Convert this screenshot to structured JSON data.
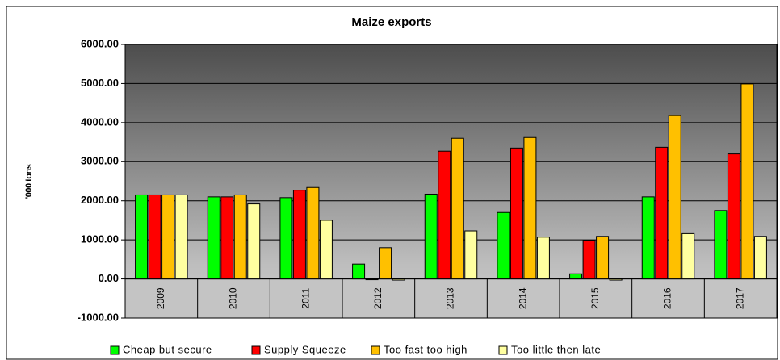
{
  "chart_data": {
    "type": "bar",
    "title": "Maize exports",
    "y_label": "'000 tons",
    "categories": [
      "2009",
      "2010",
      "2011",
      "2012",
      "2013",
      "2014",
      "2015",
      "2016",
      "2017"
    ],
    "series": [
      {
        "name": "Cheap but secure",
        "color": "#00ff00",
        "values": [
          2150,
          2100,
          2080,
          380,
          2170,
          1700,
          130,
          2100,
          1750
        ]
      },
      {
        "name": "Supply Squeeze",
        "color": "#ff0000",
        "values": [
          2150,
          2100,
          2270,
          -20,
          3270,
          3350,
          990,
          3370,
          3200
        ]
      },
      {
        "name": "Too fast too high",
        "color": "#ffc000",
        "values": [
          2150,
          2150,
          2340,
          800,
          3600,
          3620,
          1090,
          4180,
          4990
        ]
      },
      {
        "name": "Too little then late",
        "color": "#ffffa0",
        "values": [
          2150,
          1920,
          1500,
          -30,
          1230,
          1070,
          -30,
          1160,
          1090
        ]
      }
    ],
    "ylim": [
      -1000,
      6000
    ],
    "yticks": [
      {
        "value": -1000,
        "label": "-1000.00"
      },
      {
        "value": 0,
        "label": "0.00"
      },
      {
        "value": 1000,
        "label": "1000.00"
      },
      {
        "value": 2000,
        "label": "2000.00"
      },
      {
        "value": 3000,
        "label": "3000.00"
      },
      {
        "value": 4000,
        "label": "4000.00"
      },
      {
        "value": 5000,
        "label": "5000.00"
      },
      {
        "value": 6000,
        "label": "6000.00"
      }
    ],
    "grid": true,
    "legend": "bottom"
  }
}
